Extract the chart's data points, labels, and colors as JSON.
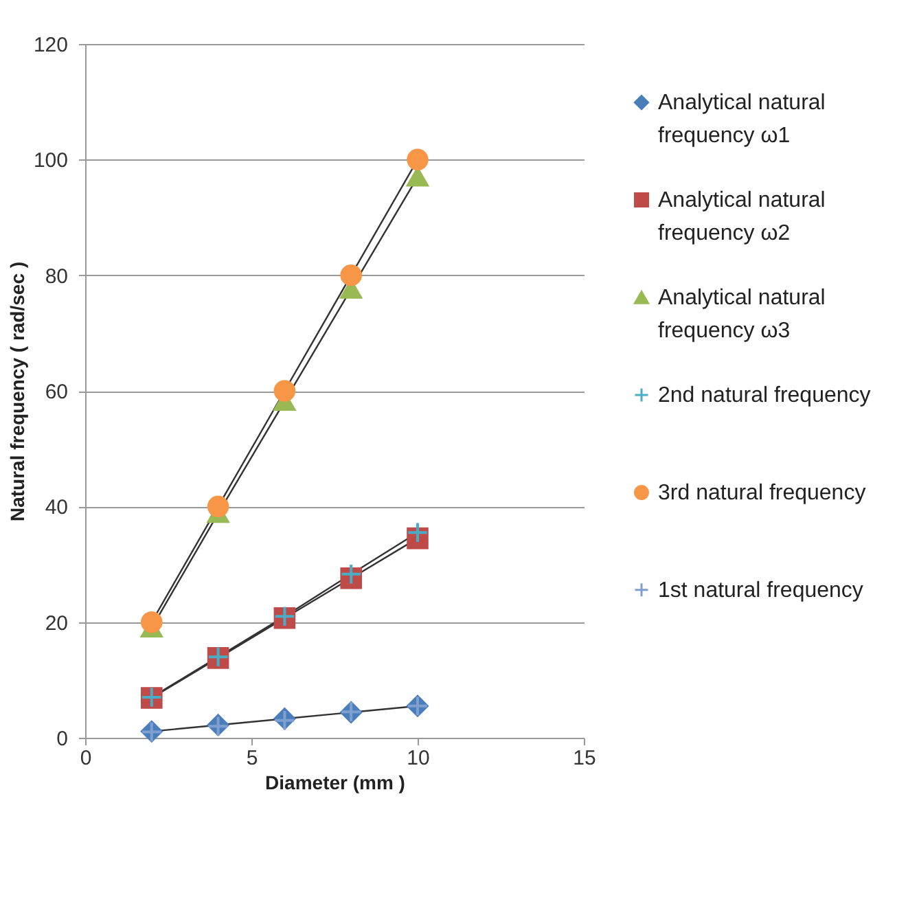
{
  "chart_data": {
    "type": "line",
    "xlabel": "Diameter (mm )",
    "ylabel": "Natural frequency ( rad/sec )",
    "x": [
      2,
      4,
      6,
      8,
      10
    ],
    "series": [
      {
        "name": "Analytical natural frequency ω1",
        "color": "#4a7ebb",
        "marker": "diamond",
        "values": [
          1.1,
          2.2,
          3.3,
          4.4,
          5.5
        ]
      },
      {
        "name": "Analytical natural frequency ω2",
        "color": "#be4b48",
        "marker": "square",
        "values": [
          6.9,
          13.8,
          20.7,
          27.6,
          34.5
        ]
      },
      {
        "name": "Analytical natural frequency ω3",
        "color": "#98b954",
        "marker": "triangle",
        "values": [
          19,
          38.8,
          58.2,
          77.6,
          97
        ]
      },
      {
        "name": "2nd natural frequency",
        "color": "#4bacc6",
        "marker": "cross",
        "values": [
          7,
          14,
          21,
          28.3,
          35.5
        ]
      },
      {
        "name": "3rd natural frequency",
        "color": "#f79646",
        "marker": "circle",
        "values": [
          20,
          40,
          60,
          80,
          100
        ]
      },
      {
        "name": "1st natural frequency",
        "type": "scatter",
        "color": "#7f9fd0",
        "marker": "cross",
        "values": [
          1,
          2,
          3,
          4.5,
          5.5
        ]
      }
    ],
    "xlim": [
      0,
      15
    ],
    "xticks": [
      0,
      5,
      10,
      15
    ],
    "ylim": [
      0,
      120
    ],
    "yticks": [
      0,
      20,
      40,
      60,
      80,
      100,
      120
    ],
    "grid": "y",
    "legend": "right"
  }
}
